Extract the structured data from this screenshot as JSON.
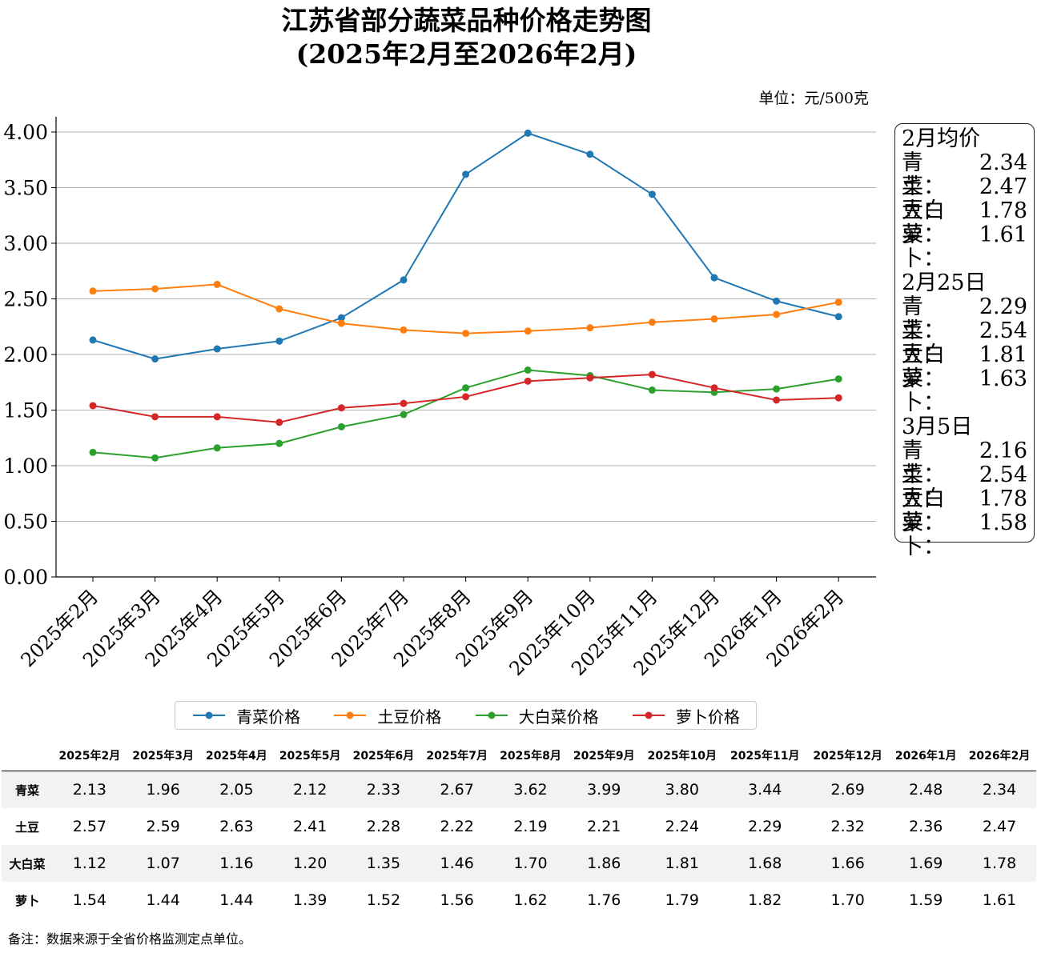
{
  "title_line1": "江苏省部分蔬菜品种价格走势图",
  "title_line2": "(2025年2月至2026年2月)",
  "unit": "单位：元/500克",
  "chart_data": {
    "type": "line",
    "categories": [
      "2025年2月",
      "2025年3月",
      "2025年4月",
      "2025年5月",
      "2025年6月",
      "2025年7月",
      "2025年8月",
      "2025年9月",
      "2025年10月",
      "2025年11月",
      "2025年12月",
      "2026年1月",
      "2026年2月"
    ],
    "ylim": [
      0,
      4.0
    ],
    "yticks": [
      "0.00",
      "0.50",
      "1.00",
      "1.50",
      "2.00",
      "2.50",
      "3.00",
      "3.50",
      "4.00"
    ],
    "grid": "horizontal",
    "legend_position": "bottom",
    "series": [
      {
        "name": "青菜价格",
        "color": "#1f77b4",
        "values": [
          2.13,
          1.96,
          2.05,
          2.12,
          2.33,
          2.67,
          3.62,
          3.99,
          3.8,
          3.44,
          2.69,
          2.48,
          2.34
        ]
      },
      {
        "name": "土豆价格",
        "color": "#ff7f0e",
        "values": [
          2.57,
          2.59,
          2.63,
          2.41,
          2.28,
          2.22,
          2.19,
          2.21,
          2.24,
          2.29,
          2.32,
          2.36,
          2.47
        ]
      },
      {
        "name": "大白菜价格",
        "color": "#2ca02c",
        "values": [
          1.12,
          1.07,
          1.16,
          1.2,
          1.35,
          1.46,
          1.7,
          1.86,
          1.81,
          1.68,
          1.66,
          1.69,
          1.78
        ]
      },
      {
        "name": "萝卜价格",
        "color": "#d62728",
        "values": [
          1.54,
          1.44,
          1.44,
          1.39,
          1.52,
          1.56,
          1.62,
          1.76,
          1.79,
          1.82,
          1.7,
          1.59,
          1.61
        ]
      }
    ]
  },
  "info_box": [
    {
      "title": "2月均价",
      "rows": [
        [
          "青　菜：",
          "2.34"
        ],
        [
          "土　豆：",
          "2.47"
        ],
        [
          "大白菜：",
          "1.78"
        ],
        [
          "萝　卜：",
          "1.61"
        ]
      ]
    },
    {
      "title": "2月25日",
      "rows": [
        [
          "青　菜：",
          "2.29"
        ],
        [
          "土　豆：",
          "2.54"
        ],
        [
          "大白菜：",
          "1.81"
        ],
        [
          "萝　卜：",
          "1.63"
        ]
      ]
    },
    {
      "title": "3月5日",
      "rows": [
        [
          "青　菜：",
          "2.16"
        ],
        [
          "土　豆：",
          "2.54"
        ],
        [
          "大白菜：",
          "1.78"
        ],
        [
          "萝　卜：",
          "1.58"
        ]
      ]
    }
  ],
  "table": {
    "headers": [
      "2025年2月",
      "2025年3月",
      "2025年4月",
      "2025年5月",
      "2025年6月",
      "2025年7月",
      "2025年8月",
      "2025年9月",
      "2025年10月",
      "2025年11月",
      "2025年12月",
      "2026年1月",
      "2026年2月"
    ],
    "rows": [
      {
        "label": "青菜",
        "values": [
          "2.13",
          "1.96",
          "2.05",
          "2.12",
          "2.33",
          "2.67",
          "3.62",
          "3.99",
          "3.80",
          "3.44",
          "2.69",
          "2.48",
          "2.34"
        ]
      },
      {
        "label": "土豆",
        "values": [
          "2.57",
          "2.59",
          "2.63",
          "2.41",
          "2.28",
          "2.22",
          "2.19",
          "2.21",
          "2.24",
          "2.29",
          "2.32",
          "2.36",
          "2.47"
        ]
      },
      {
        "label": "大白菜",
        "values": [
          "1.12",
          "1.07",
          "1.16",
          "1.20",
          "1.35",
          "1.46",
          "1.70",
          "1.86",
          "1.81",
          "1.68",
          "1.66",
          "1.69",
          "1.78"
        ]
      },
      {
        "label": "萝卜",
        "values": [
          "1.54",
          "1.44",
          "1.44",
          "1.39",
          "1.52",
          "1.56",
          "1.62",
          "1.76",
          "1.79",
          "1.82",
          "1.70",
          "1.59",
          "1.61"
        ]
      }
    ]
  },
  "note": "备注：数据来源于全省价格监测定点单位。"
}
